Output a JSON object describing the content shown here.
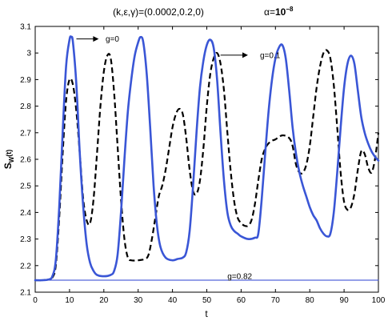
{
  "chart_data": {
    "type": "line",
    "title": "(k,ε,γ)=(0.0002,0.2,0)",
    "subtitle_alpha": "α=",
    "subtitle_value": "10",
    "subtitle_exp": "−8",
    "xlabel": "t",
    "ylabel_main": "S",
    "ylabel_sub": "W",
    "ylabel_tail": "(t)",
    "xlim": [
      0,
      100
    ],
    "ylim": [
      2.1,
      3.1
    ],
    "xticks": [
      "0",
      "10",
      "20",
      "30",
      "40",
      "50",
      "60",
      "70",
      "80",
      "90",
      "100"
    ],
    "yticks": [
      "2.1",
      "2.2",
      "2.3",
      "2.4",
      "2.5",
      "2.6",
      "2.7",
      "2.8",
      "2.9",
      "3",
      "3.1"
    ],
    "grid": false,
    "colors": {
      "blue": "#3a56d6",
      "black": "#000000",
      "thin_blue": "#2a3fd0"
    },
    "series": [
      {
        "name": "g=0",
        "style": "solid",
        "color": "#3a56d6",
        "points": [
          [
            0,
            2.145
          ],
          [
            2,
            2.145
          ],
          [
            4,
            2.148
          ],
          [
            5,
            2.16
          ],
          [
            6,
            2.22
          ],
          [
            7,
            2.42
          ],
          [
            8,
            2.7
          ],
          [
            9,
            2.95
          ],
          [
            10,
            3.05
          ],
          [
            10.5,
            3.06
          ],
          [
            11,
            3.04
          ],
          [
            12,
            2.88
          ],
          [
            13,
            2.62
          ],
          [
            14,
            2.42
          ],
          [
            15,
            2.28
          ],
          [
            16,
            2.21
          ],
          [
            17,
            2.18
          ],
          [
            18,
            2.165
          ],
          [
            20,
            2.16
          ],
          [
            22,
            2.165
          ],
          [
            23,
            2.18
          ],
          [
            24,
            2.24
          ],
          [
            25,
            2.4
          ],
          [
            26,
            2.6
          ],
          [
            27,
            2.78
          ],
          [
            28,
            2.9
          ],
          [
            29,
            2.99
          ],
          [
            30,
            3.04
          ],
          [
            30.7,
            3.06
          ],
          [
            31.5,
            3.04
          ],
          [
            32.5,
            2.92
          ],
          [
            33.5,
            2.72
          ],
          [
            34.5,
            2.5
          ],
          [
            35.5,
            2.35
          ],
          [
            36.5,
            2.27
          ],
          [
            38,
            2.23
          ],
          [
            40,
            2.22
          ],
          [
            41.5,
            2.225
          ],
          [
            43,
            2.23
          ],
          [
            44,
            2.25
          ],
          [
            45,
            2.33
          ],
          [
            46,
            2.5
          ],
          [
            47,
            2.7
          ],
          [
            48,
            2.87
          ],
          [
            49,
            2.97
          ],
          [
            50,
            3.03
          ],
          [
            51,
            3.05
          ],
          [
            52,
            3.02
          ],
          [
            53,
            2.9
          ],
          [
            54,
            2.7
          ],
          [
            55,
            2.52
          ],
          [
            56,
            2.4
          ],
          [
            57,
            2.35
          ],
          [
            58,
            2.33
          ],
          [
            59,
            2.32
          ],
          [
            60,
            2.31
          ],
          [
            62,
            2.3
          ],
          [
            64,
            2.305
          ],
          [
            65,
            2.32
          ],
          [
            66,
            2.45
          ],
          [
            67,
            2.62
          ],
          [
            68,
            2.78
          ],
          [
            69,
            2.9
          ],
          [
            70,
            2.98
          ],
          [
            71,
            3.02
          ],
          [
            72,
            3.03
          ],
          [
            73,
            2.98
          ],
          [
            74,
            2.86
          ],
          [
            75,
            2.72
          ],
          [
            76,
            2.62
          ],
          [
            77,
            2.55
          ],
          [
            78,
            2.5
          ],
          [
            79,
            2.46
          ],
          [
            80,
            2.42
          ],
          [
            81,
            2.39
          ],
          [
            82,
            2.37
          ],
          [
            83,
            2.34
          ],
          [
            84,
            2.32
          ],
          [
            85,
            2.31
          ],
          [
            86,
            2.32
          ],
          [
            87,
            2.4
          ],
          [
            88,
            2.55
          ],
          [
            89,
            2.72
          ],
          [
            90,
            2.87
          ],
          [
            91,
            2.96
          ],
          [
            92,
            2.99
          ],
          [
            93,
            2.96
          ],
          [
            94,
            2.86
          ],
          [
            95,
            2.76
          ],
          [
            96,
            2.7
          ],
          [
            97,
            2.66
          ],
          [
            98,
            2.63
          ],
          [
            99,
            2.61
          ],
          [
            100,
            2.595
          ]
        ]
      },
      {
        "name": "g=0.1",
        "style": "dashed",
        "color": "#000000",
        "points": [
          [
            0,
            2.145
          ],
          [
            2,
            2.145
          ],
          [
            4,
            2.148
          ],
          [
            5,
            2.155
          ],
          [
            6,
            2.2
          ],
          [
            7,
            2.38
          ],
          [
            8,
            2.62
          ],
          [
            9,
            2.82
          ],
          [
            10,
            2.9
          ],
          [
            11,
            2.88
          ],
          [
            12,
            2.78
          ],
          [
            13,
            2.62
          ],
          [
            14,
            2.45
          ],
          [
            15,
            2.37
          ],
          [
            16,
            2.36
          ],
          [
            17,
            2.45
          ],
          [
            18,
            2.62
          ],
          [
            19,
            2.8
          ],
          [
            20,
            2.93
          ],
          [
            21,
            2.99
          ],
          [
            22,
            2.98
          ],
          [
            23,
            2.85
          ],
          [
            24,
            2.65
          ],
          [
            25,
            2.45
          ],
          [
            26,
            2.3
          ],
          [
            27,
            2.23
          ],
          [
            28,
            2.22
          ],
          [
            30,
            2.22
          ],
          [
            32,
            2.225
          ],
          [
            33,
            2.24
          ],
          [
            34,
            2.3
          ],
          [
            35,
            2.38
          ],
          [
            36,
            2.46
          ],
          [
            37,
            2.5
          ],
          [
            38,
            2.56
          ],
          [
            39,
            2.64
          ],
          [
            40,
            2.72
          ],
          [
            41,
            2.77
          ],
          [
            42,
            2.79
          ],
          [
            43,
            2.77
          ],
          [
            44,
            2.68
          ],
          [
            45,
            2.56
          ],
          [
            46,
            2.48
          ],
          [
            47,
            2.47
          ],
          [
            48,
            2.52
          ],
          [
            49,
            2.64
          ],
          [
            50,
            2.8
          ],
          [
            51,
            2.92
          ],
          [
            52,
            2.98
          ],
          [
            53,
            3.0
          ],
          [
            54,
            2.96
          ],
          [
            55,
            2.86
          ],
          [
            56,
            2.7
          ],
          [
            57,
            2.55
          ],
          [
            58,
            2.44
          ],
          [
            59,
            2.38
          ],
          [
            60,
            2.36
          ],
          [
            61,
            2.35
          ],
          [
            62,
            2.35
          ],
          [
            63,
            2.37
          ],
          [
            64,
            2.43
          ],
          [
            65,
            2.52
          ],
          [
            66,
            2.6
          ],
          [
            67,
            2.64
          ],
          [
            68,
            2.66
          ],
          [
            69,
            2.67
          ],
          [
            70,
            2.675
          ],
          [
            72,
            2.69
          ],
          [
            74,
            2.68
          ],
          [
            75,
            2.65
          ],
          [
            76,
            2.58
          ],
          [
            77,
            2.55
          ],
          [
            78,
            2.55
          ],
          [
            79,
            2.58
          ],
          [
            80,
            2.65
          ],
          [
            81,
            2.76
          ],
          [
            82,
            2.87
          ],
          [
            83,
            2.95
          ],
          [
            84,
            3.0
          ],
          [
            85,
            3.01
          ],
          [
            86,
            2.98
          ],
          [
            87,
            2.88
          ],
          [
            88,
            2.72
          ],
          [
            89,
            2.55
          ],
          [
            90,
            2.44
          ],
          [
            91,
            2.41
          ],
          [
            92,
            2.42
          ],
          [
            93,
            2.47
          ],
          [
            94,
            2.56
          ],
          [
            95,
            2.63
          ],
          [
            96,
            2.62
          ],
          [
            97,
            2.57
          ],
          [
            98,
            2.55
          ],
          [
            99,
            2.6
          ],
          [
            100,
            2.7
          ]
        ]
      },
      {
        "name": "g=0.82",
        "style": "thin",
        "color": "#2a3fd0",
        "points": [
          [
            0,
            2.145
          ],
          [
            100,
            2.145
          ]
        ]
      }
    ],
    "annotations": [
      {
        "text": "g=0",
        "x": 20.5,
        "y": 3.053
      },
      {
        "text": "g=0.1",
        "x": 65.5,
        "y": 2.992
      },
      {
        "text": "g=0.82",
        "x": 56,
        "y": 2.16
      }
    ],
    "arrows": [
      {
        "from": [
          12,
          3.053
        ],
        "to": [
          18.5,
          3.053
        ]
      },
      {
        "from": [
          54,
          2.992
        ],
        "to": [
          62,
          2.992
        ]
      }
    ]
  }
}
